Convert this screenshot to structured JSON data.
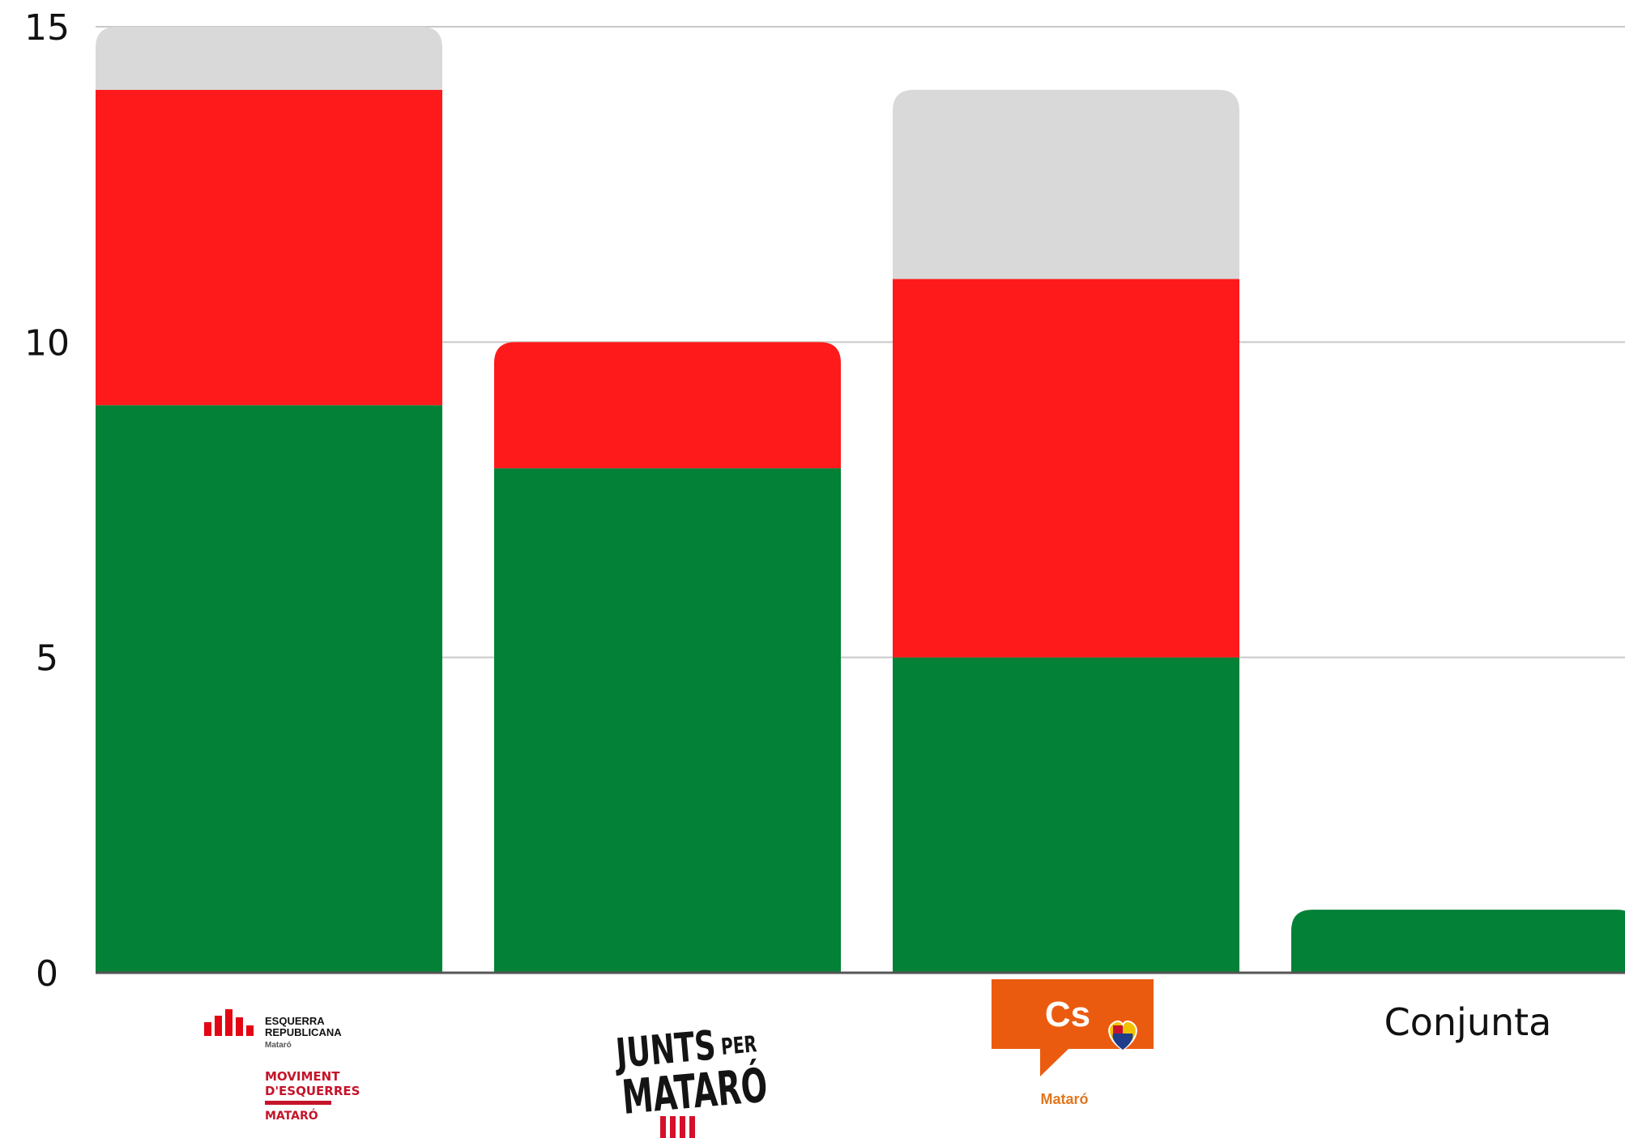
{
  "chart_data": {
    "type": "bar",
    "stacked": true,
    "categories": [
      "",
      "",
      "",
      "Conjunta"
    ],
    "logos": [
      {
        "name": "erc-mataro",
        "lines": [
          "ESQUERRA",
          "REPUBLICANA",
          "Mataró",
          "MOVIMENT",
          "D'ESQUERRES",
          "MATARÓ"
        ]
      },
      {
        "name": "junts-mataro",
        "lines": [
          "JUNTS",
          "PER",
          "MATARÓ"
        ]
      },
      {
        "name": "cs-mataro",
        "lines": [
          "Cs",
          "Mataró"
        ]
      }
    ],
    "series": [
      {
        "color": "#028137",
        "values": [
          9,
          8,
          5,
          1
        ]
      },
      {
        "color": "#fe1a1b",
        "values": [
          5,
          2,
          6,
          0
        ]
      },
      {
        "color": "#d9d9d9",
        "values": [
          1,
          0,
          3,
          0
        ]
      }
    ],
    "ylim": [
      0,
      15
    ],
    "yticks": [
      "0",
      "5",
      "10",
      "15"
    ],
    "grid": true,
    "legend": "none"
  }
}
